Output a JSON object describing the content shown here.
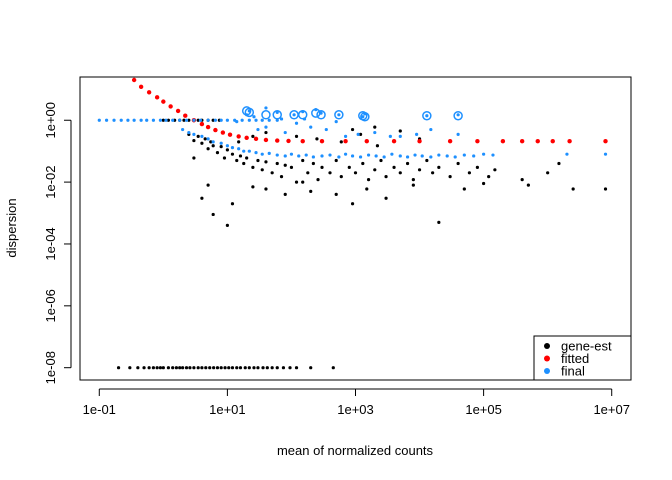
{
  "chart_data": {
    "type": "scatter",
    "title": "",
    "xlabel": "mean of normalized counts",
    "ylabel": "dispersion",
    "log_x": true,
    "log_y": true,
    "xlim": [
      0.05,
      20000000
    ],
    "ylim": [
      4e-09,
      25
    ],
    "x_ticks": [
      {
        "value": 0.1,
        "label": "1e-01"
      },
      {
        "value": 10,
        "label": "1e+01"
      },
      {
        "value": 1000,
        "label": "1e+03"
      },
      {
        "value": 100000,
        "label": "1e+05"
      },
      {
        "value": 10000000,
        "label": "1e+07"
      }
    ],
    "y_ticks": [
      {
        "value": 1e-08,
        "label": "1e-08"
      },
      {
        "value": 1e-06,
        "label": "1e-06"
      },
      {
        "value": 0.0001,
        "label": "1e-04"
      },
      {
        "value": 0.01,
        "label": "1e-02"
      },
      {
        "value": 1,
        "label": "1e+00"
      }
    ],
    "grid": false,
    "legend_position": "bottom-right",
    "series": [
      {
        "name": "gene-est",
        "color": "#000000",
        "points": [
          [
            0.2,
            1e-08
          ],
          [
            0.3,
            1e-08
          ],
          [
            0.4,
            1e-08
          ],
          [
            0.5,
            1e-08
          ],
          [
            0.6,
            1e-08
          ],
          [
            0.7,
            1e-08
          ],
          [
            0.8,
            1e-08
          ],
          [
            0.9,
            1e-08
          ],
          [
            1.0,
            1e-08
          ],
          [
            1.2,
            1e-08
          ],
          [
            1.4,
            1e-08
          ],
          [
            1.6,
            1e-08
          ],
          [
            1.8,
            1e-08
          ],
          [
            2.0,
            1e-08
          ],
          [
            2.3,
            1e-08
          ],
          [
            2.6,
            1e-08
          ],
          [
            3.0,
            1e-08
          ],
          [
            3.5,
            1e-08
          ],
          [
            4.0,
            1e-08
          ],
          [
            4.6,
            1e-08
          ],
          [
            5.3,
            1e-08
          ],
          [
            6.1,
            1e-08
          ],
          [
            7.0,
            1e-08
          ],
          [
            8.0,
            1e-08
          ],
          [
            9.2,
            1e-08
          ],
          [
            10.5,
            1e-08
          ],
          [
            12,
            1e-08
          ],
          [
            14,
            1e-08
          ],
          [
            16,
            1e-08
          ],
          [
            19,
            1e-08
          ],
          [
            22,
            1e-08
          ],
          [
            26,
            1e-08
          ],
          [
            30,
            1e-08
          ],
          [
            36,
            1e-08
          ],
          [
            42,
            1e-08
          ],
          [
            50,
            1e-08
          ],
          [
            60,
            1e-08
          ],
          [
            75,
            1e-08
          ],
          [
            95,
            1e-08
          ],
          [
            120,
            1e-08
          ],
          [
            200,
            1e-08
          ],
          [
            450,
            1e-08
          ],
          [
            1.0,
            1.0
          ],
          [
            1.2,
            1.0
          ],
          [
            1.5,
            1.0
          ],
          [
            1.8,
            1.0
          ],
          [
            2.1,
            1.0
          ],
          [
            2.5,
            1.0
          ],
          [
            3.0,
            1.0
          ],
          [
            3.5,
            1.0
          ],
          [
            4.0,
            1.0
          ],
          [
            5.0,
            1.0
          ],
          [
            6.0,
            1.0
          ],
          [
            7.5,
            1.0
          ],
          [
            2.5,
            0.35
          ],
          [
            3.0,
            0.22
          ],
          [
            3.5,
            0.3
          ],
          [
            4.0,
            0.18
          ],
          [
            4.5,
            0.25
          ],
          [
            5.0,
            0.12
          ],
          [
            5.5,
            0.2
          ],
          [
            6.0,
            0.15
          ],
          [
            7.0,
            0.09
          ],
          [
            8.0,
            0.14
          ],
          [
            9.0,
            0.06
          ],
          [
            10,
            0.11
          ],
          [
            12,
            0.08
          ],
          [
            14,
            0.05
          ],
          [
            16,
            0.07
          ],
          [
            18,
            0.04
          ],
          [
            20,
            0.06
          ],
          [
            25,
            0.03
          ],
          [
            30,
            0.05
          ],
          [
            35,
            0.025
          ],
          [
            40,
            0.045
          ],
          [
            50,
            0.02
          ],
          [
            60,
            0.04
          ],
          [
            70,
            0.015
          ],
          [
            80,
            0.035
          ],
          [
            100,
            0.03
          ],
          [
            120,
            0.01
          ],
          [
            150,
            0.05
          ],
          [
            180,
            0.02
          ],
          [
            220,
            0.04
          ],
          [
            260,
            0.012
          ],
          [
            300,
            0.03
          ],
          [
            400,
            0.02
          ],
          [
            500,
            0.05
          ],
          [
            600,
            0.015
          ],
          [
            800,
            0.03
          ],
          [
            1000,
            0.02
          ],
          [
            1300,
            0.04
          ],
          [
            1600,
            0.012
          ],
          [
            2000,
            0.025
          ],
          [
            2500,
            0.05
          ],
          [
            3000,
            0.015
          ],
          [
            4000,
            0.03
          ],
          [
            5000,
            0.02
          ],
          [
            6500,
            0.04
          ],
          [
            8000,
            0.012
          ],
          [
            10000,
            0.025
          ],
          [
            13000,
            0.05
          ],
          [
            16000,
            0.02
          ],
          [
            20000,
            0.03
          ],
          [
            30000,
            0.015
          ],
          [
            40000,
            0.04
          ],
          [
            60000,
            0.02
          ],
          [
            80000,
            0.03
          ],
          [
            120000,
            0.015
          ],
          [
            150000,
            0.025
          ],
          [
            3,
            0.06
          ],
          [
            5,
            0.008
          ],
          [
            4,
            0.003
          ],
          [
            6,
            0.0009
          ],
          [
            10,
            0.0004
          ],
          [
            12,
            0.002
          ],
          [
            25,
            0.007
          ],
          [
            40,
            0.006
          ],
          [
            80,
            0.004
          ],
          [
            150,
            0.01
          ],
          [
            200,
            0.005
          ],
          [
            500,
            0.004
          ],
          [
            900,
            0.002
          ],
          [
            1500,
            0.006
          ],
          [
            3000,
            0.003
          ],
          [
            8000,
            0.008
          ],
          [
            20000,
            0.0005
          ],
          [
            50000,
            0.006
          ],
          [
            100000,
            0.009
          ],
          [
            400000,
            0.012
          ],
          [
            500000,
            0.008
          ],
          [
            1000000,
            0.02
          ],
          [
            1500000,
            0.04
          ],
          [
            2500000,
            0.006
          ],
          [
            8000000,
            0.006
          ],
          [
            15,
            0.2
          ],
          [
            25,
            0.3
          ],
          [
            40,
            0.4
          ],
          [
            120,
            0.3
          ],
          [
            250,
            0.25
          ],
          [
            600,
            0.2
          ],
          [
            1200,
            0.35
          ],
          [
            2200,
            0.15
          ],
          [
            5000,
            0.45
          ],
          [
            900,
            0.5
          ],
          [
            2000,
            0.6
          ],
          [
            10000,
            0.25
          ]
        ]
      },
      {
        "name": "fitted",
        "color": "#FF0000",
        "points": [
          [
            0.35,
            20
          ],
          [
            0.45,
            12
          ],
          [
            0.6,
            8
          ],
          [
            0.8,
            5.5
          ],
          [
            1.0,
            4
          ],
          [
            1.3,
            2.8
          ],
          [
            1.7,
            2.0
          ],
          [
            2.2,
            1.4
          ],
          [
            3.0,
            1.0
          ],
          [
            4.0,
            0.75
          ],
          [
            5.0,
            0.6
          ],
          [
            6.5,
            0.48
          ],
          [
            8.5,
            0.4
          ],
          [
            11,
            0.34
          ],
          [
            15,
            0.3
          ],
          [
            20,
            0.27
          ],
          [
            28,
            0.25
          ],
          [
            40,
            0.23
          ],
          [
            60,
            0.22
          ],
          [
            90,
            0.215
          ],
          [
            150,
            0.21
          ],
          [
            300,
            0.21
          ],
          [
            700,
            0.21
          ],
          [
            1500,
            0.21
          ],
          [
            4000,
            0.21
          ],
          [
            10000,
            0.21
          ],
          [
            30000,
            0.21
          ],
          [
            80000,
            0.21
          ],
          [
            200000,
            0.21
          ],
          [
            400000,
            0.21
          ],
          [
            700000,
            0.21
          ],
          [
            1200000,
            0.21
          ],
          [
            2200000,
            0.21
          ],
          [
            8000000,
            0.21
          ]
        ]
      },
      {
        "name": "final",
        "color": "#1E90FF",
        "points": [
          [
            0.1,
            1.0
          ],
          [
            0.13,
            1.0
          ],
          [
            0.17,
            1.0
          ],
          [
            0.22,
            1.0
          ],
          [
            0.28,
            1.0
          ],
          [
            0.35,
            1.0
          ],
          [
            0.45,
            1.0
          ],
          [
            0.55,
            1.0
          ],
          [
            0.7,
            1.0
          ],
          [
            0.9,
            1.0
          ],
          [
            1.1,
            1.0
          ],
          [
            1.4,
            1.0
          ],
          [
            1.8,
            1.0
          ],
          [
            2.3,
            1.0
          ],
          [
            3.0,
            1.0
          ],
          [
            3.8,
            1.0
          ],
          [
            5,
            1.0
          ],
          [
            6.5,
            1.0
          ],
          [
            8,
            1.0
          ],
          [
            10,
            1.0
          ],
          [
            13,
            1.0
          ],
          [
            17,
            1.0
          ],
          [
            22,
            1.0
          ],
          [
            28,
            1.0
          ],
          [
            35,
            1.0
          ],
          [
            45,
            1.0
          ],
          [
            60,
            1.0
          ],
          [
            2.0,
            0.5
          ],
          [
            2.5,
            0.4
          ],
          [
            3.0,
            0.35
          ],
          [
            4.0,
            0.3
          ],
          [
            5.0,
            0.25
          ],
          [
            6.0,
            0.2
          ],
          [
            8.0,
            0.18
          ],
          [
            10,
            0.15
          ],
          [
            12,
            0.13
          ],
          [
            15,
            0.12
          ],
          [
            18,
            0.1
          ],
          [
            22,
            0.1
          ],
          [
            28,
            0.09
          ],
          [
            35,
            0.08
          ],
          [
            45,
            0.085
          ],
          [
            60,
            0.075
          ],
          [
            80,
            0.07
          ],
          [
            100,
            0.08
          ],
          [
            130,
            0.07
          ],
          [
            170,
            0.075
          ],
          [
            220,
            0.065
          ],
          [
            300,
            0.07
          ],
          [
            400,
            0.075
          ],
          [
            550,
            0.065
          ],
          [
            700,
            0.08
          ],
          [
            900,
            0.07
          ],
          [
            1200,
            0.065
          ],
          [
            1600,
            0.075
          ],
          [
            2100,
            0.07
          ],
          [
            2800,
            0.065
          ],
          [
            3700,
            0.08
          ],
          [
            5000,
            0.07
          ],
          [
            6500,
            0.065
          ],
          [
            8500,
            0.075
          ],
          [
            11000,
            0.07
          ],
          [
            15000,
            0.065
          ],
          [
            20000,
            0.075
          ],
          [
            27000,
            0.07
          ],
          [
            36000,
            0.065
          ],
          [
            50000,
            0.075
          ],
          [
            70000,
            0.07
          ],
          [
            100000,
            0.08
          ],
          [
            140000,
            0.075
          ],
          [
            2000000,
            0.08
          ],
          [
            8000000,
            0.08
          ],
          [
            30,
            0.5
          ],
          [
            40,
            0.6
          ],
          [
            80,
            0.4
          ],
          [
            120,
            0.8
          ],
          [
            200,
            0.6
          ],
          [
            350,
            0.5
          ],
          [
            500,
            0.9
          ],
          [
            700,
            0.3
          ],
          [
            1100,
            0.35
          ],
          [
            2000,
            0.4
          ],
          [
            3500,
            0.3
          ],
          [
            5000,
            0.3
          ],
          [
            9000,
            0.35
          ],
          [
            15000,
            0.5
          ],
          [
            40000,
            0.35
          ],
          [
            20,
            1.5
          ],
          [
            22,
            2
          ],
          [
            40,
            2.5
          ],
          [
            60,
            1.8
          ],
          [
            110,
            1.5
          ],
          [
            150,
            1.9
          ],
          [
            240,
            2.2
          ],
          [
            290,
            1.7
          ],
          [
            550,
            1.5
          ],
          [
            1300,
            1.3
          ],
          [
            1400,
            1.6
          ],
          [
            13000,
            1.4
          ],
          [
            40000,
            1.5
          ],
          [
            14,
            0.9
          ],
          [
            26,
            1.3
          ],
          [
            70,
            1.1
          ],
          [
            160,
            1.1
          ]
        ]
      }
    ],
    "circled_points": [
      [
        20,
        2.0
      ],
      [
        22,
        1.8
      ],
      [
        40,
        1.5
      ],
      [
        60,
        1.5
      ],
      [
        110,
        1.5
      ],
      [
        150,
        1.5
      ],
      [
        240,
        1.7
      ],
      [
        290,
        1.5
      ],
      [
        550,
        1.5
      ],
      [
        1300,
        1.4
      ],
      [
        1400,
        1.3
      ],
      [
        13000,
        1.4
      ],
      [
        40000,
        1.4
      ]
    ],
    "legend": [
      {
        "label": "gene-est",
        "color": "#000000"
      },
      {
        "label": "fitted",
        "color": "#FF0000"
      },
      {
        "label": "final",
        "color": "#1E90FF"
      }
    ],
    "circle_color": "#1E90FF",
    "axis_color": "#000000"
  }
}
